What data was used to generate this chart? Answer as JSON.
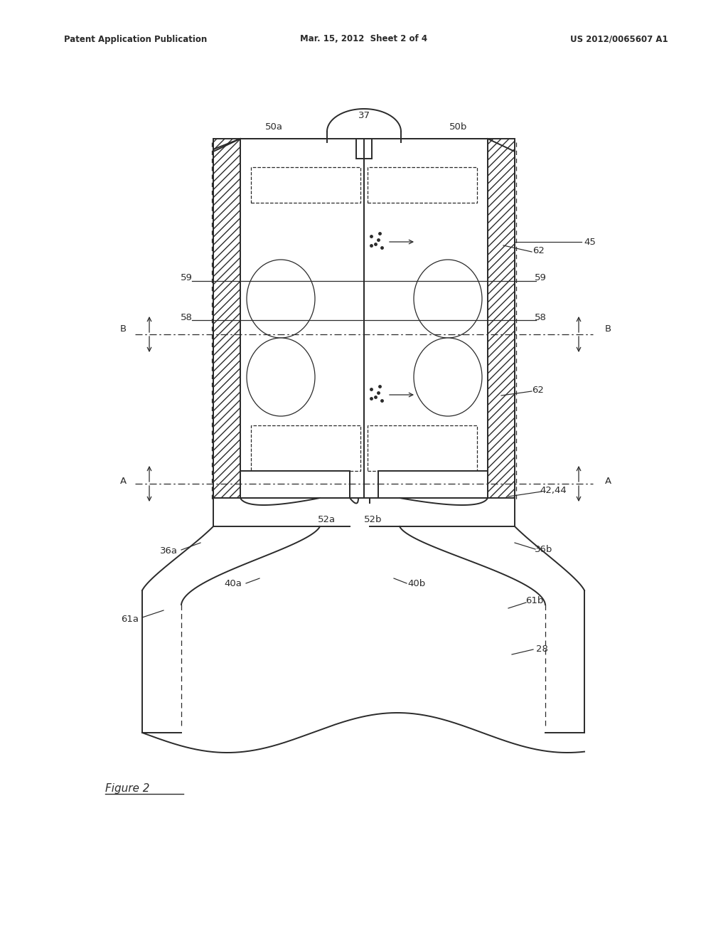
{
  "bg_color": "#ffffff",
  "lc": "#2a2a2a",
  "header_left": "Patent Application Publication",
  "header_center": "Mar. 15, 2012  Sheet 2 of 4",
  "header_right": "US 2012/0065607 A1",
  "figure_label": "Figure 2",
  "lw_main": 1.4,
  "lw_thin": 0.9,
  "font_size": 9.5,
  "font_size_hdr": 8.5
}
